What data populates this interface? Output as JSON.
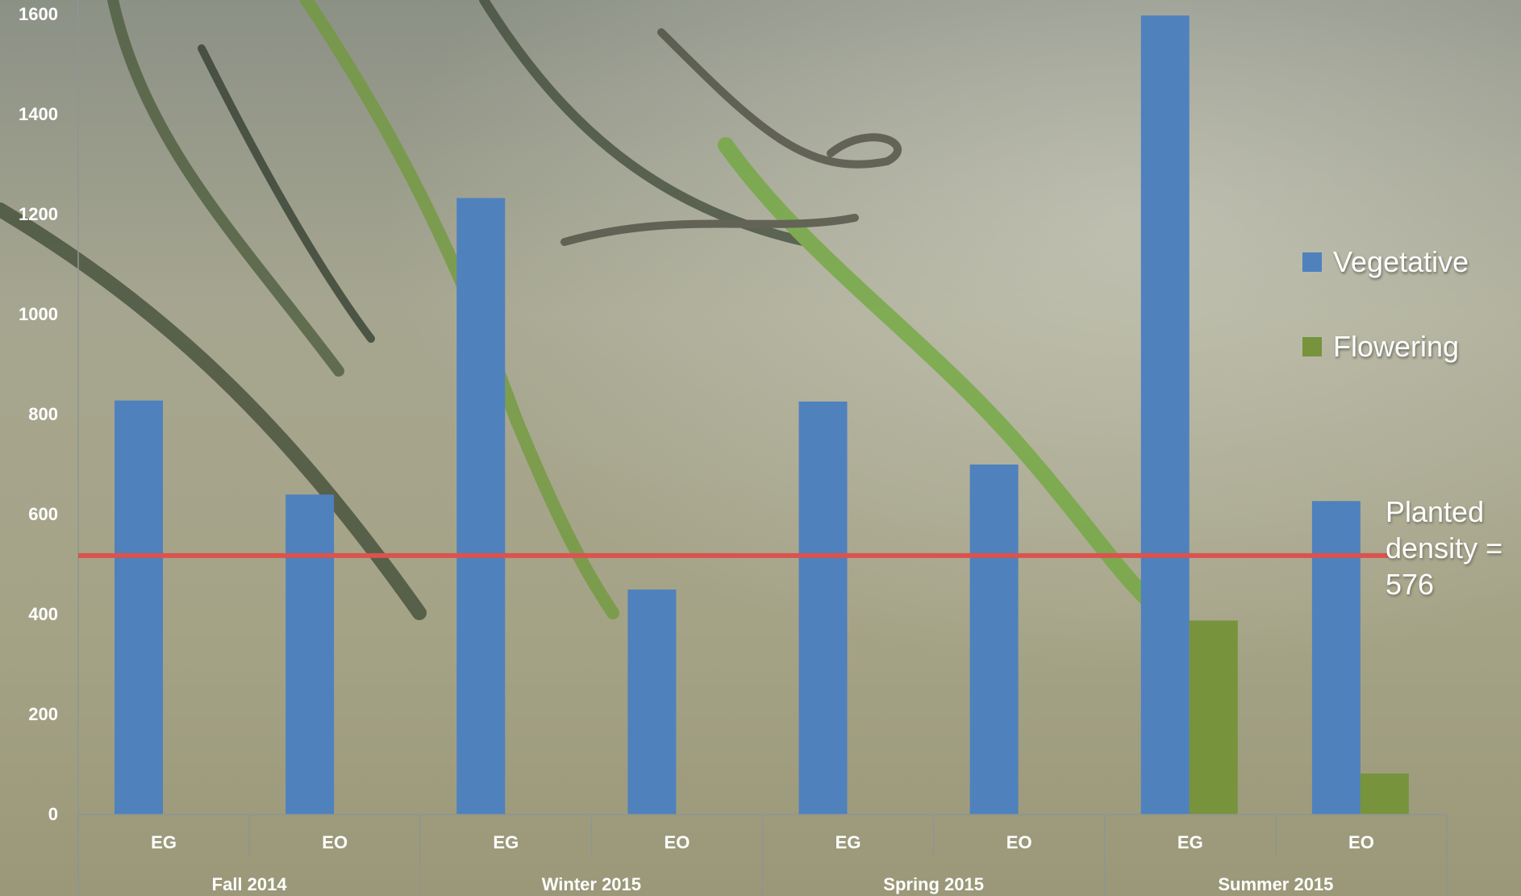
{
  "chart_data": {
    "type": "bar",
    "title": "",
    "xlabel": "",
    "ylabel": "",
    "ylim": [
      0,
      1600
    ],
    "yticks": [
      0,
      200,
      400,
      600,
      800,
      1000,
      1200,
      1400,
      1600
    ],
    "groups": [
      "Fall 2014",
      "Winter 2015",
      "Spring 2015",
      "Summer 2015"
    ],
    "categories": [
      "EG",
      "EO",
      "EG",
      "EO",
      "EG",
      "EO",
      "EG",
      "EO"
    ],
    "series": [
      {
        "name": "Vegetative",
        "color": "#4f81bd",
        "values": [
          828,
          640,
          1233,
          450,
          826,
          700,
          1598,
          627
        ]
      },
      {
        "name": "Flowering",
        "color": "#77933c",
        "values": [
          0,
          0,
          0,
          0,
          0,
          0,
          388,
          82
        ]
      }
    ],
    "reference_line": {
      "value": 518,
      "color": "#d9534f"
    },
    "annotation": "Planted density = 576",
    "legend_position": "right",
    "grid": false
  }
}
